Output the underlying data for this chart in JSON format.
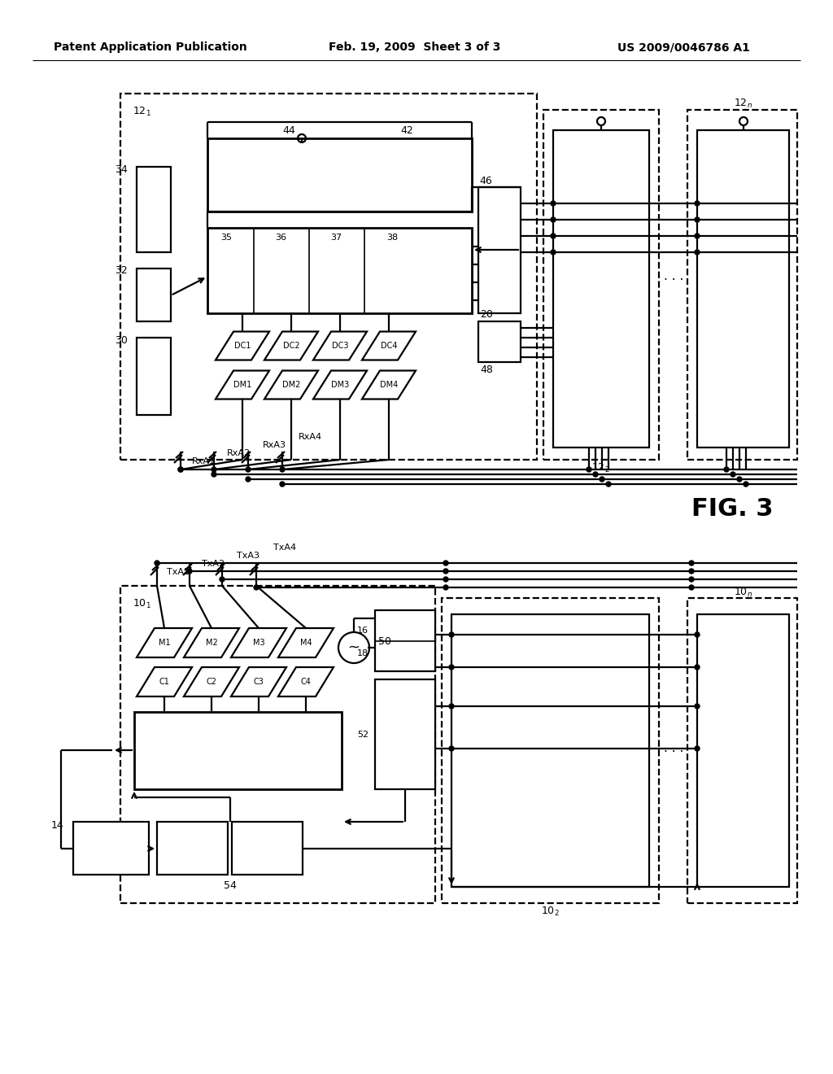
{
  "bg_color": "#ffffff",
  "title_left": "Patent Application Publication",
  "title_mid": "Feb. 19, 2009  Sheet 3 of 3",
  "title_right": "US 2009/0046786 A1",
  "fig_label": "FIG. 3",
  "rx_labels": [
    "RxA1",
    "RxA2",
    "RxA3",
    "RxA4"
  ],
  "tx_labels": [
    "TxA1",
    "TxA2",
    "TxA3",
    "TxA4"
  ],
  "dm_labels": [
    "DM1",
    "DM2",
    "DM3",
    "DM4"
  ],
  "dc_labels": [
    "DC1",
    "DC2",
    "DC3",
    "DC4"
  ],
  "m_labels": [
    "M1",
    "M2",
    "M3",
    "M4"
  ],
  "c_labels": [
    "C1",
    "C2",
    "C3",
    "C4"
  ]
}
